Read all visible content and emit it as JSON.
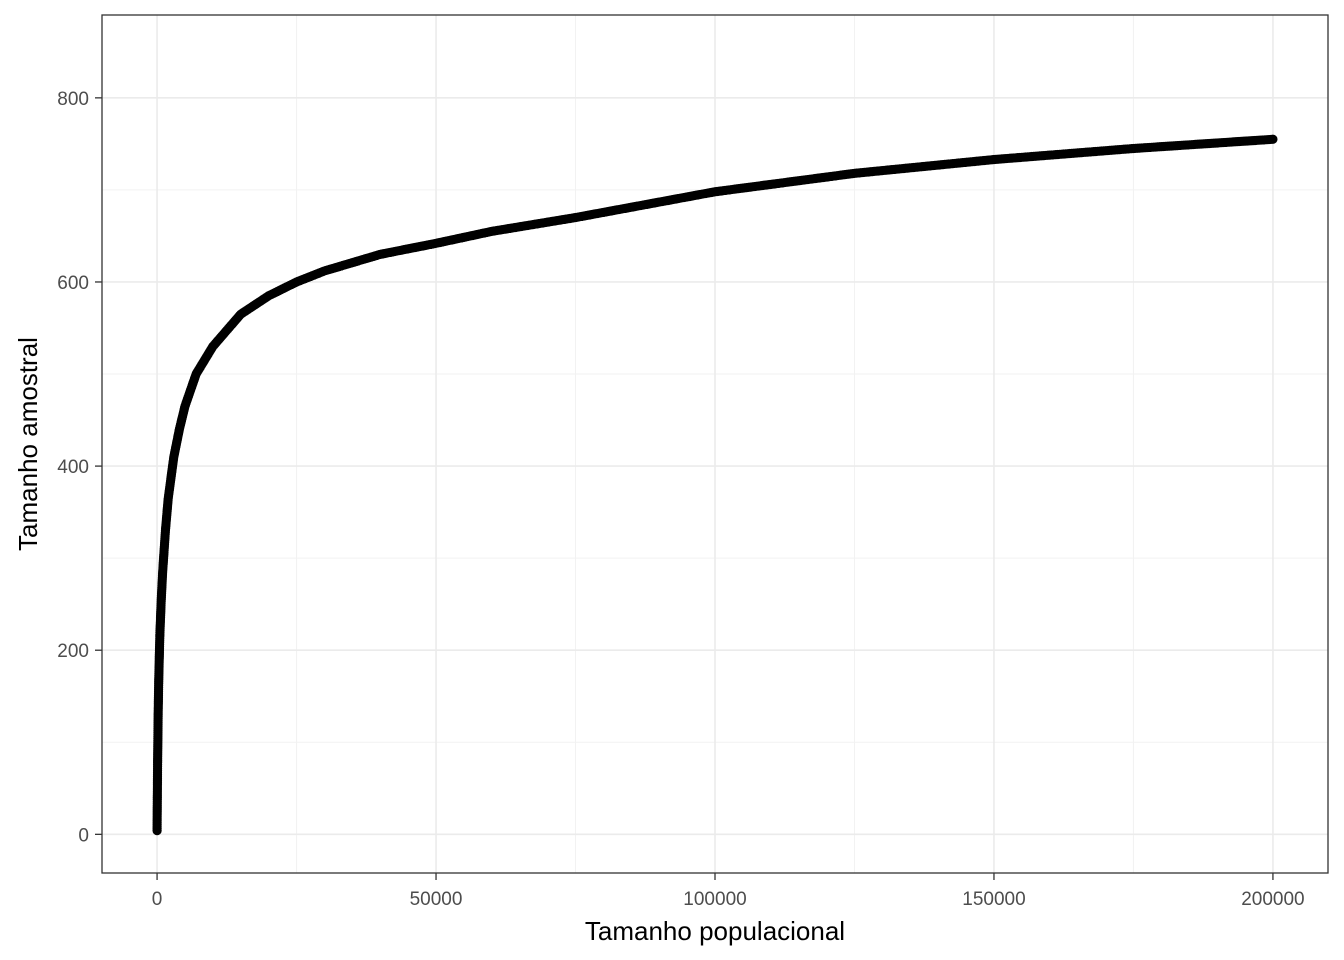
{
  "chart_data": {
    "type": "scatter",
    "title": "",
    "xlabel": "Tamanho populacional",
    "ylabel": "Tamanho amostral",
    "xlim": [
      -9870,
      209870
    ],
    "ylim": [
      -42,
      890
    ],
    "x_ticks": [
      0,
      50000,
      100000,
      150000,
      200000
    ],
    "x_tick_labels": [
      "0",
      "50000",
      "100000",
      "150000",
      "200000"
    ],
    "y_ticks": [
      0,
      200,
      400,
      600,
      800
    ],
    "y_tick_labels": [
      "0",
      "200",
      "400",
      "600",
      "800"
    ],
    "grid": true,
    "legend": "none",
    "point_color": "#000000",
    "series": [
      {
        "x": [
          5,
          20,
          50,
          100,
          200,
          300,
          500,
          750,
          1000,
          1500,
          2000,
          3000,
          4000,
          5000,
          7000,
          10000,
          15000,
          20000,
          25000,
          30000,
          40000,
          50000,
          60000,
          75000,
          100000,
          125000,
          150000,
          175000,
          200000
        ],
        "y": [
          4,
          19,
          44,
          80,
          132,
          168,
          217,
          255,
          285,
          330,
          365,
          410,
          440,
          465,
          500,
          530,
          565,
          585,
          600,
          612,
          630,
          642,
          655,
          670,
          698,
          718,
          733,
          745,
          755
        ]
      }
    ]
  }
}
